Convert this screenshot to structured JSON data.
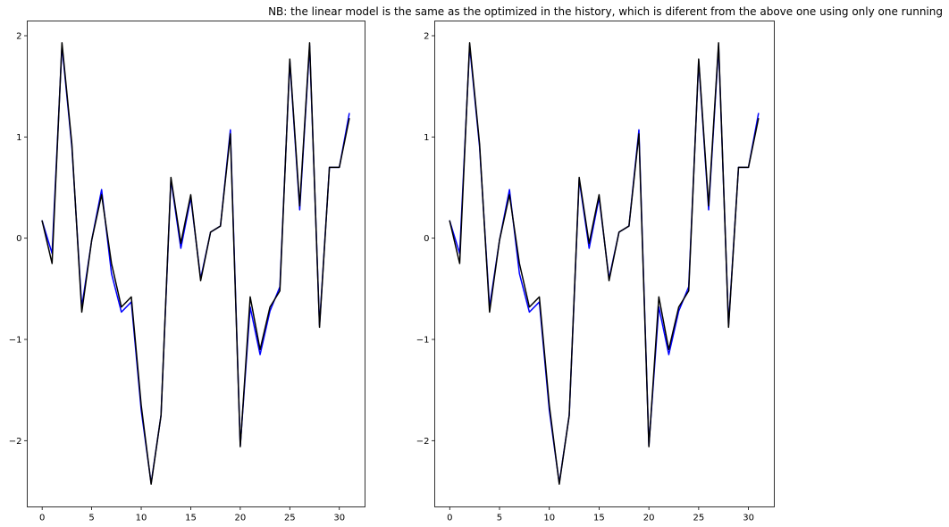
{
  "figure": {
    "title": "NB: the linear model is the same as the optimized in the history, which is diferent from the above one using only one running"
  },
  "colors": {
    "series_a": "#0000ff",
    "series_b": "#000000",
    "axes": "#000000",
    "background": "#ffffff"
  },
  "chart_data": [
    {
      "type": "line",
      "panel": "left",
      "title": "",
      "xlabel": "",
      "ylabel": "",
      "xlim": [
        -1.55,
        32.55
      ],
      "ylim": [
        -2.65,
        2.15
      ],
      "xticks": [
        0,
        5,
        10,
        15,
        20,
        25,
        30
      ],
      "yticks": [
        -2,
        -1,
        0,
        1,
        2
      ],
      "ytick_labels": [
        "−2",
        "−1",
        "0",
        "1",
        "2"
      ],
      "grid": false,
      "legend": "none",
      "x": [
        0,
        1,
        2,
        3,
        4,
        5,
        6,
        7,
        8,
        9,
        10,
        11,
        12,
        13,
        14,
        15,
        16,
        17,
        18,
        19,
        20,
        21,
        22,
        23,
        24,
        25,
        26,
        27,
        28,
        29,
        30,
        31
      ],
      "series": [
        {
          "color": "#0000ff",
          "values": [
            0.17,
            -0.15,
            1.9,
            0.9,
            -0.68,
            -0.02,
            0.48,
            -0.35,
            -0.73,
            -0.63,
            -1.7,
            -2.42,
            -1.75,
            0.58,
            -0.1,
            0.4,
            -0.4,
            0.06,
            0.12,
            1.07,
            -2.05,
            -0.68,
            -1.15,
            -0.72,
            -0.48,
            1.75,
            0.28,
            1.9,
            -0.86,
            0.7,
            0.7,
            1.23
          ]
        },
        {
          "color": "#000000",
          "values": [
            0.17,
            -0.25,
            1.93,
            0.93,
            -0.73,
            -0.02,
            0.43,
            -0.25,
            -0.68,
            -0.58,
            -1.65,
            -2.43,
            -1.75,
            0.6,
            -0.05,
            0.43,
            -0.42,
            0.06,
            0.12,
            1.03,
            -2.06,
            -0.58,
            -1.1,
            -0.68,
            -0.52,
            1.77,
            0.32,
            1.93,
            -0.88,
            0.7,
            0.7,
            1.18
          ]
        }
      ]
    },
    {
      "type": "line",
      "panel": "right",
      "title": "",
      "xlabel": "",
      "ylabel": "",
      "xlim": [
        -1.55,
        32.55
      ],
      "ylim": [
        -2.65,
        2.15
      ],
      "xticks": [
        0,
        5,
        10,
        15,
        20,
        25,
        30
      ],
      "yticks": [
        -2,
        -1,
        0,
        1,
        2
      ],
      "ytick_labels": [
        "−2",
        "−1",
        "0",
        "1",
        "2"
      ],
      "grid": false,
      "legend": "none",
      "x": [
        0,
        1,
        2,
        3,
        4,
        5,
        6,
        7,
        8,
        9,
        10,
        11,
        12,
        13,
        14,
        15,
        16,
        17,
        18,
        19,
        20,
        21,
        22,
        23,
        24,
        25,
        26,
        27,
        28,
        29,
        30,
        31
      ],
      "series": [
        {
          "color": "#0000ff",
          "values": [
            0.17,
            -0.15,
            1.9,
            0.9,
            -0.68,
            -0.02,
            0.48,
            -0.35,
            -0.73,
            -0.63,
            -1.7,
            -2.42,
            -1.75,
            0.58,
            -0.1,
            0.4,
            -0.4,
            0.06,
            0.12,
            1.07,
            -2.05,
            -0.68,
            -1.15,
            -0.72,
            -0.48,
            1.75,
            0.28,
            1.9,
            -0.86,
            0.7,
            0.7,
            1.23
          ]
        },
        {
          "color": "#000000",
          "values": [
            0.17,
            -0.25,
            1.93,
            0.93,
            -0.73,
            -0.02,
            0.43,
            -0.25,
            -0.68,
            -0.58,
            -1.65,
            -2.43,
            -1.75,
            0.6,
            -0.05,
            0.43,
            -0.42,
            0.06,
            0.12,
            1.03,
            -2.06,
            -0.58,
            -1.1,
            -0.68,
            -0.52,
            1.77,
            0.32,
            1.93,
            -0.88,
            0.7,
            0.7,
            1.18
          ]
        }
      ]
    }
  ]
}
